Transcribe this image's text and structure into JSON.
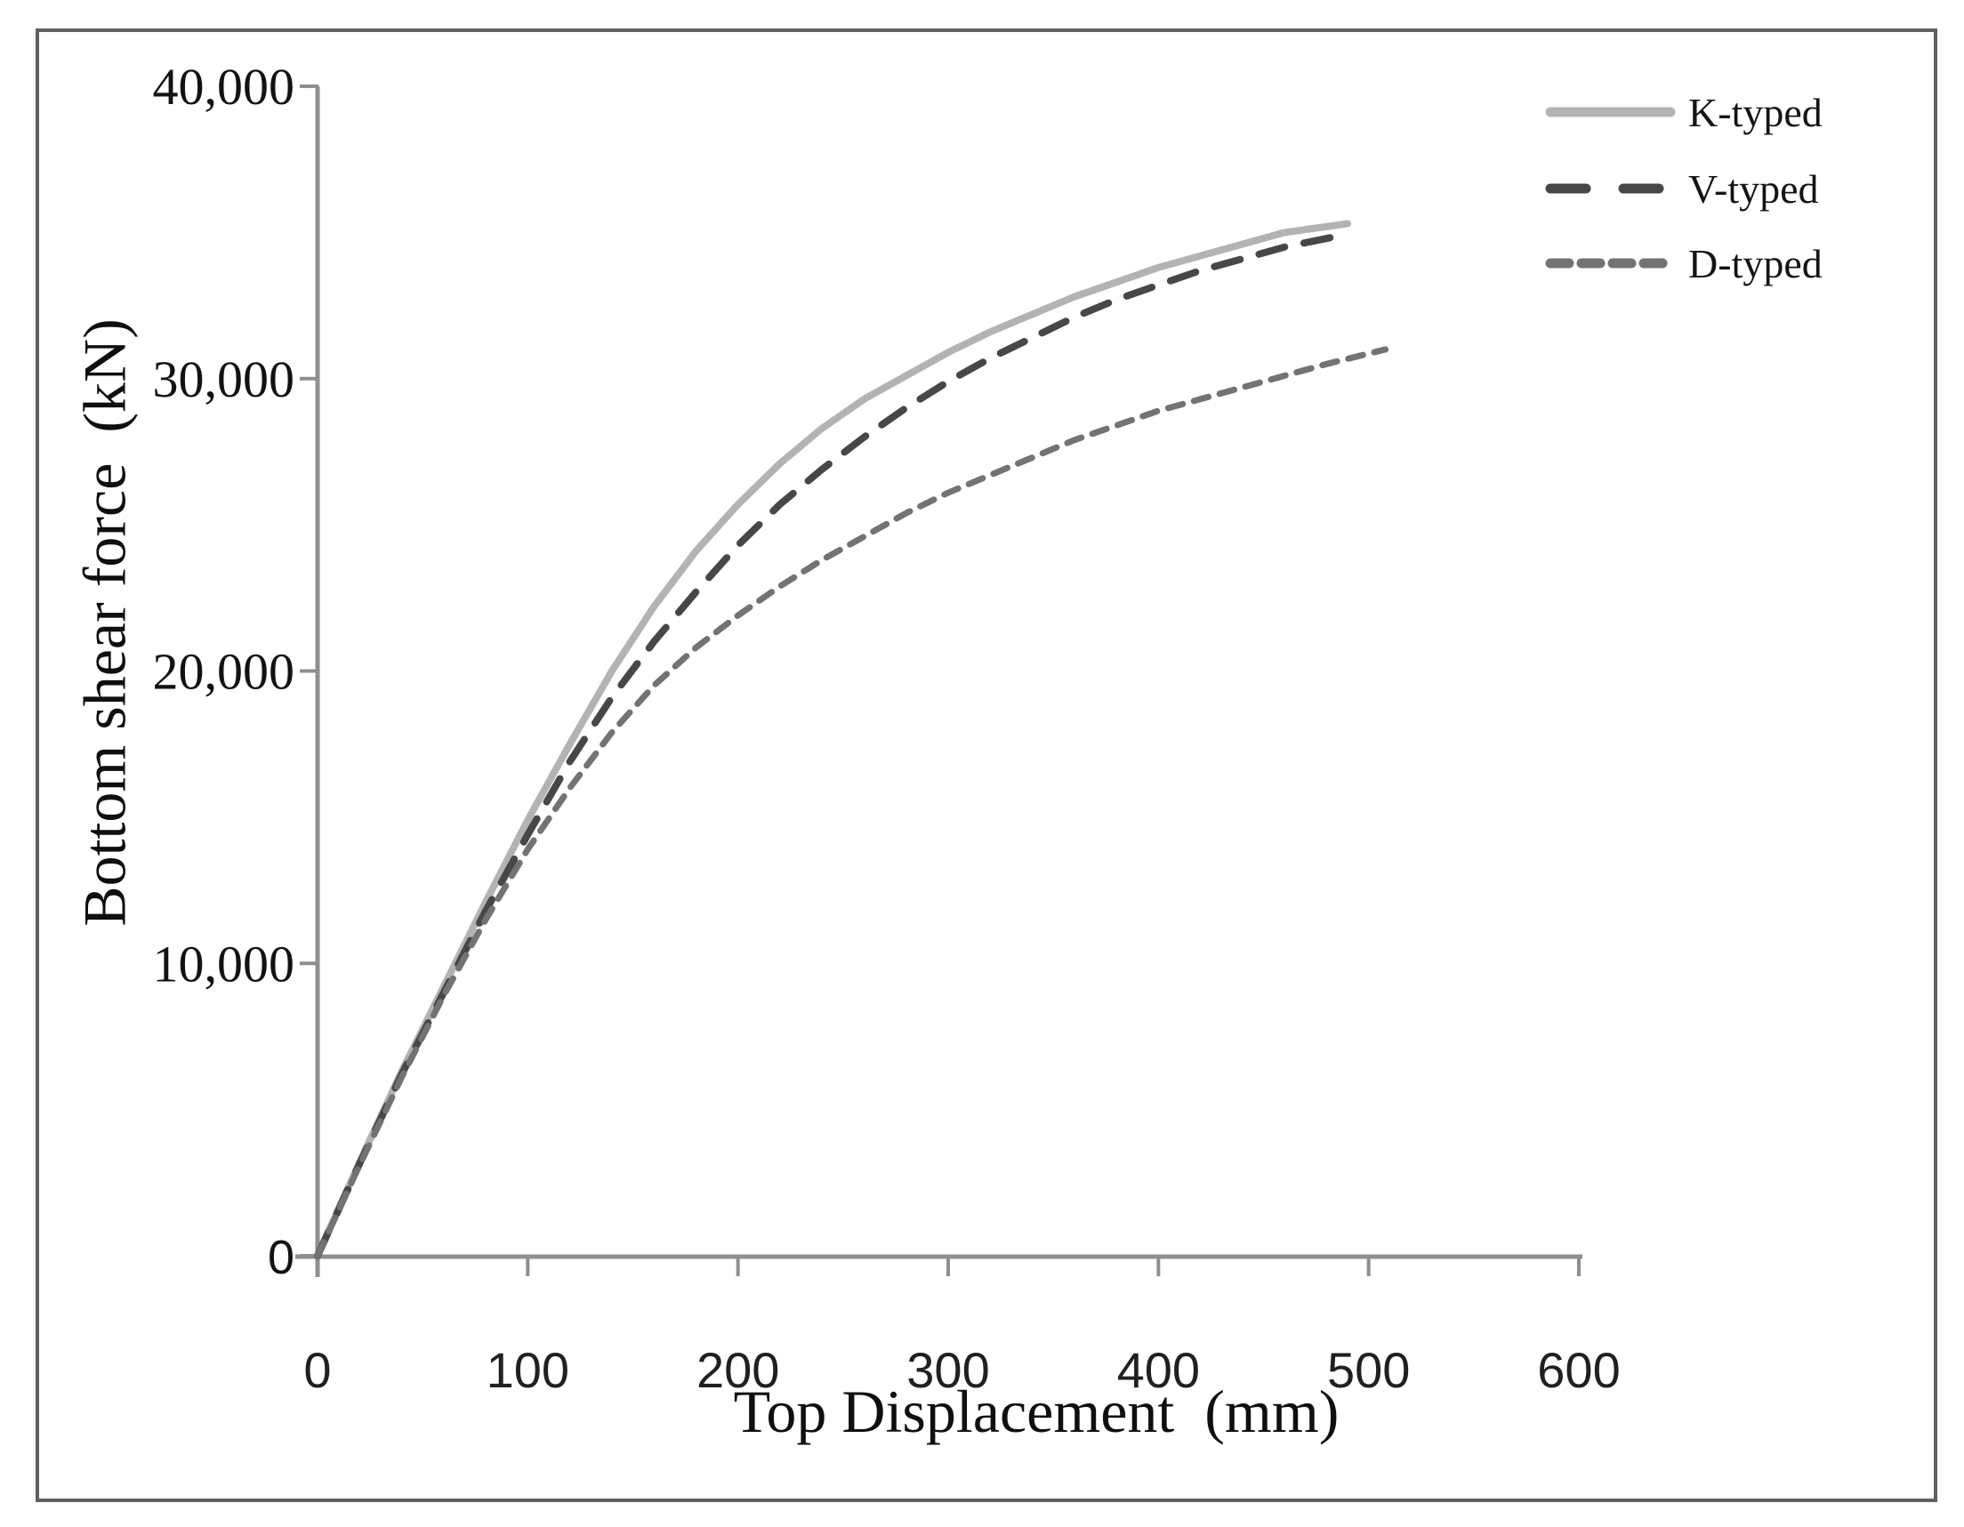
{
  "figure": {
    "background": "#ffffff",
    "frame_color": "#606060"
  },
  "chart_data": {
    "type": "line",
    "title": "",
    "xlabel": "Top Displacement  (mm)",
    "ylabel": "Bottom shear force  (kN)",
    "xlim": [
      0,
      600
    ],
    "ylim": [
      0,
      40000
    ],
    "x_ticks": [
      0,
      100,
      200,
      300,
      400,
      500,
      600
    ],
    "y_ticks": [
      0,
      10000,
      20000,
      30000,
      40000
    ],
    "y_tick_labels": [
      "0",
      "10,000",
      "20,000",
      "30,000",
      "40,000"
    ],
    "grid": false,
    "legend_position": "top-right",
    "axis_color": "#8f8f8f",
    "text_color": "#141414",
    "series": [
      {
        "name": "K-typed",
        "style": "solid",
        "color": "#b3b3b3",
        "width": 8,
        "x": [
          0,
          20,
          40,
          60,
          80,
          100,
          120,
          140,
          160,
          180,
          200,
          220,
          240,
          260,
          280,
          300,
          320,
          340,
          360,
          380,
          400,
          420,
          440,
          460,
          490
        ],
        "y": [
          0,
          3200,
          6300,
          9200,
          12100,
          14900,
          17500,
          20000,
          22200,
          24100,
          25700,
          27100,
          28300,
          29300,
          30100,
          30900,
          31600,
          32200,
          32800,
          33300,
          33800,
          34200,
          34600,
          35000,
          35300
        ]
      },
      {
        "name": "V-typed",
        "style": "long-dash",
        "color": "#474747",
        "width": 8,
        "x": [
          0,
          20,
          40,
          60,
          80,
          100,
          120,
          140,
          160,
          180,
          200,
          220,
          240,
          260,
          280,
          300,
          320,
          340,
          360,
          380,
          400,
          420,
          440,
          460,
          487
        ],
        "y": [
          0,
          3150,
          6200,
          9000,
          11800,
          14400,
          16900,
          19100,
          21000,
          22700,
          24300,
          25700,
          26900,
          28000,
          29000,
          29900,
          30700,
          31400,
          32100,
          32700,
          33200,
          33700,
          34100,
          34500,
          34900
        ]
      },
      {
        "name": "D-typed",
        "style": "short-dash",
        "color": "#737373",
        "width": 7,
        "x": [
          0,
          20,
          40,
          60,
          80,
          100,
          120,
          140,
          160,
          180,
          200,
          220,
          240,
          260,
          280,
          300,
          320,
          340,
          360,
          380,
          400,
          420,
          440,
          460,
          480,
          508
        ],
        "y": [
          0,
          3100,
          6100,
          8900,
          11500,
          13900,
          16000,
          17900,
          19500,
          20800,
          21900,
          22900,
          23800,
          24600,
          25400,
          26100,
          26700,
          27300,
          27900,
          28400,
          28900,
          29300,
          29700,
          30100,
          30500,
          31000
        ]
      }
    ]
  }
}
